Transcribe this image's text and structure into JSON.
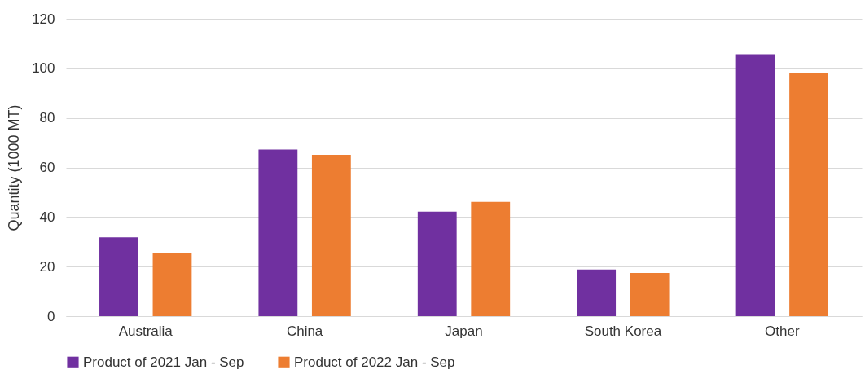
{
  "chart_data": {
    "type": "bar",
    "ylabel": "Quantity (1000 MT)",
    "categories": [
      "Australia",
      "China",
      "Japan",
      "South Korea",
      "Other"
    ],
    "series": [
      {
        "name": "Product of 2021 Jan - Sep",
        "color": "#7030a0",
        "values": [
          31.8,
          67.2,
          42.2,
          18.8,
          105.7
        ]
      },
      {
        "name": "Product of 2022 Jan - Sep",
        "color": "#ed7d31",
        "values": [
          25.4,
          65.1,
          46.1,
          17.4,
          98.2
        ]
      }
    ],
    "ylim": [
      0,
      120
    ],
    "yticks": [
      0,
      20,
      40,
      60,
      80,
      100,
      120
    ],
    "grid": "y",
    "legend": "bottom"
  }
}
